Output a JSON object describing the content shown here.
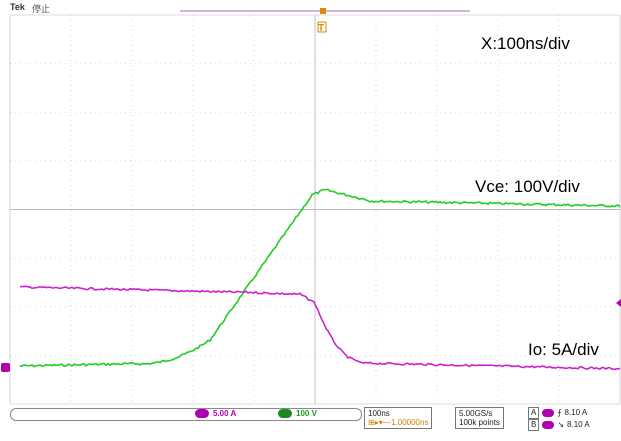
{
  "header": {
    "brand": "Tek",
    "status": "停止",
    "trigger_marker_label": "T"
  },
  "annotations": {
    "timebase": "X:100ns/div",
    "voltage": "Vce: 100V/div",
    "current": "Io: 5A/div"
  },
  "status_bar": {
    "ch_current_scale": "5.00 A",
    "ch_voltage_scale": "100 V",
    "horizontal_scale": "100ns",
    "horizontal_position": "-1.00000ns",
    "sample_rate": "5.00GS/s",
    "record_length": "100k points",
    "trigger_a_label": "A",
    "trigger_a_value": "8.10 A",
    "trigger_b_label": "B",
    "trigger_b_value": "8.10 A"
  },
  "colors": {
    "voltage_trace": "#22cc22",
    "current_trace": "#cc22cc",
    "grid": "#bbbbbb",
    "trigger_marker": "#e08a00"
  }
}
